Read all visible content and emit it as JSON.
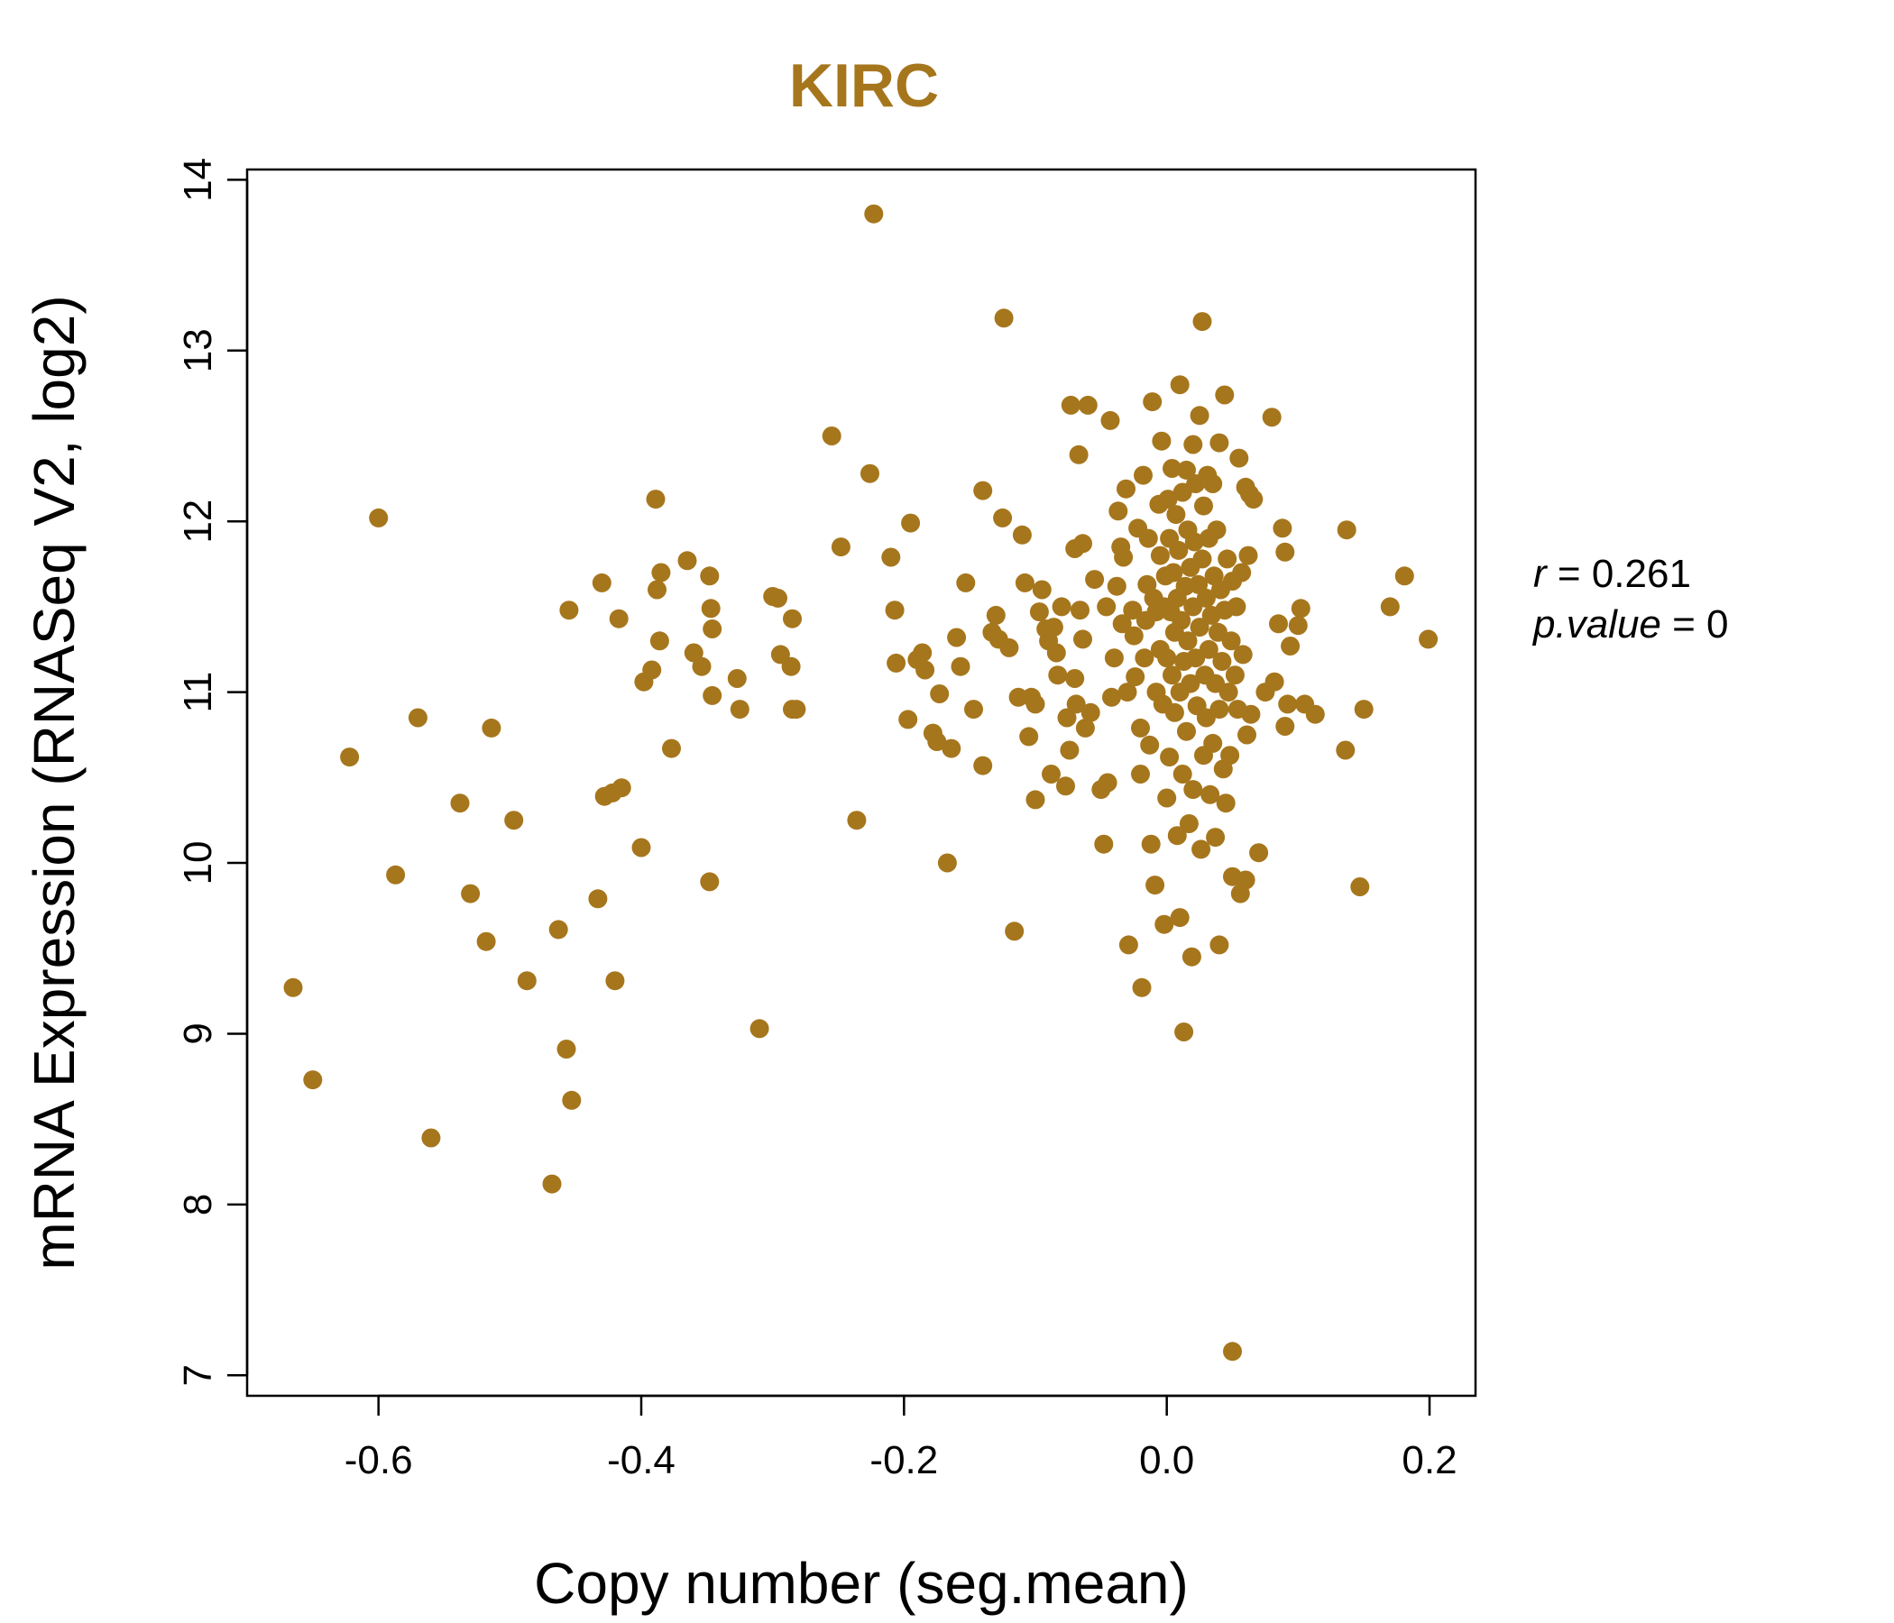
{
  "chart_data": {
    "type": "scatter",
    "title": "KIRC",
    "xlabel": "Copy number (seg.mean)",
    "ylabel": "mRNA Expression (RNASeq V2, log2)",
    "xlim": [
      -0.7,
      0.235
    ],
    "ylim": [
      6.88,
      14.06
    ],
    "x_ticks": [
      -0.6,
      -0.4,
      -0.2,
      0.0,
      0.2
    ],
    "x_tick_labels": [
      "-0.6",
      "-0.4",
      "-0.2",
      "0.0",
      "0.2"
    ],
    "y_ticks": [
      7,
      8,
      9,
      10,
      11,
      12,
      13,
      14
    ],
    "y_tick_labels": [
      "7",
      "8",
      "9",
      "10",
      "11",
      "12",
      "13",
      "14"
    ],
    "grid": false,
    "point_color": "#A6761D",
    "title_color": "#A6761D",
    "stats": {
      "r_label": "r",
      "r_value": "0.261",
      "p_label": "p.value",
      "p_value": "0"
    },
    "series": [
      {
        "points": [
          [
            -0.665,
            9.27
          ],
          [
            -0.65,
            8.73
          ],
          [
            -0.6,
            12.02
          ],
          [
            -0.622,
            10.62
          ],
          [
            -0.57,
            10.85
          ],
          [
            -0.56,
            8.39
          ],
          [
            -0.587,
            9.93
          ],
          [
            -0.538,
            10.35
          ],
          [
            -0.53,
            9.82
          ],
          [
            -0.518,
            9.54
          ],
          [
            -0.514,
            10.79
          ],
          [
            -0.497,
            10.25
          ],
          [
            -0.487,
            9.31
          ],
          [
            -0.468,
            8.12
          ],
          [
            -0.463,
            9.61
          ],
          [
            -0.457,
            8.91
          ],
          [
            -0.455,
            11.48
          ],
          [
            -0.453,
            8.61
          ],
          [
            -0.433,
            9.79
          ],
          [
            -0.43,
            11.64
          ],
          [
            -0.428,
            10.39
          ],
          [
            -0.422,
            10.41
          ],
          [
            -0.42,
            9.31
          ],
          [
            -0.417,
            11.43
          ],
          [
            -0.415,
            10.44
          ],
          [
            -0.4,
            10.09
          ],
          [
            -0.398,
            11.06
          ],
          [
            -0.392,
            11.13
          ],
          [
            -0.389,
            12.13
          ],
          [
            -0.388,
            11.6
          ],
          [
            -0.386,
            11.3
          ],
          [
            -0.385,
            11.7
          ],
          [
            -0.377,
            10.67
          ],
          [
            -0.365,
            11.77
          ],
          [
            -0.36,
            11.23
          ],
          [
            -0.354,
            11.15
          ],
          [
            -0.348,
            11.68
          ],
          [
            -0.347,
            11.49
          ],
          [
            -0.346,
            10.98
          ],
          [
            -0.346,
            11.37
          ],
          [
            -0.348,
            9.89
          ],
          [
            -0.327,
            11.08
          ],
          [
            -0.325,
            10.9
          ],
          [
            -0.31,
            9.03
          ],
          [
            -0.3,
            11.56
          ],
          [
            -0.296,
            11.55
          ],
          [
            -0.294,
            11.22
          ],
          [
            -0.286,
            11.15
          ],
          [
            -0.285,
            11.43
          ],
          [
            -0.285,
            10.9
          ],
          [
            -0.282,
            10.9
          ],
          [
            -0.255,
            12.5
          ],
          [
            -0.248,
            11.85
          ],
          [
            -0.236,
            10.25
          ],
          [
            -0.226,
            12.28
          ],
          [
            -0.223,
            13.8
          ],
          [
            -0.21,
            11.79
          ],
          [
            -0.207,
            11.48
          ],
          [
            -0.206,
            11.17
          ],
          [
            -0.197,
            10.84
          ],
          [
            -0.195,
            11.99
          ],
          [
            -0.19,
            11.19
          ],
          [
            -0.186,
            11.23
          ],
          [
            -0.184,
            11.13
          ],
          [
            -0.178,
            10.76
          ],
          [
            -0.175,
            10.71
          ],
          [
            -0.173,
            10.99
          ],
          [
            -0.167,
            10.0
          ],
          [
            -0.164,
            10.67
          ],
          [
            -0.16,
            11.32
          ],
          [
            -0.157,
            11.15
          ],
          [
            -0.153,
            11.64
          ],
          [
            -0.147,
            10.9
          ],
          [
            -0.14,
            12.18
          ],
          [
            -0.14,
            10.57
          ],
          [
            -0.133,
            11.35
          ],
          [
            -0.13,
            11.45
          ],
          [
            -0.128,
            11.31
          ],
          [
            -0.125,
            12.02
          ],
          [
            -0.124,
            13.19
          ],
          [
            -0.12,
            11.26
          ],
          [
            -0.116,
            9.6
          ],
          [
            -0.113,
            10.97
          ],
          [
            -0.11,
            11.92
          ],
          [
            -0.108,
            11.64
          ],
          [
            -0.105,
            10.74
          ],
          [
            -0.103,
            10.97
          ],
          [
            -0.1,
            10.37
          ],
          [
            -0.1,
            10.93
          ],
          [
            -0.097,
            11.47
          ],
          [
            -0.095,
            11.6
          ],
          [
            -0.092,
            11.37
          ],
          [
            -0.09,
            11.3
          ],
          [
            -0.088,
            10.52
          ],
          [
            -0.086,
            11.38
          ],
          [
            -0.084,
            11.23
          ],
          [
            -0.083,
            11.1
          ],
          [
            -0.08,
            11.5
          ],
          [
            -0.077,
            10.45
          ],
          [
            -0.076,
            10.85
          ],
          [
            -0.074,
            10.66
          ],
          [
            -0.073,
            12.68
          ],
          [
            -0.07,
            11.84
          ],
          [
            -0.07,
            11.08
          ],
          [
            -0.069,
            10.93
          ],
          [
            -0.067,
            12.39
          ],
          [
            -0.066,
            11.48
          ],
          [
            -0.064,
            11.87
          ],
          [
            -0.064,
            11.31
          ],
          [
            -0.062,
            10.79
          ],
          [
            -0.06,
            12.68
          ],
          [
            -0.058,
            10.88
          ],
          [
            -0.055,
            11.66
          ],
          [
            -0.05,
            10.43
          ],
          [
            -0.048,
            10.11
          ],
          [
            -0.046,
            11.5
          ],
          [
            -0.045,
            10.47
          ],
          [
            -0.043,
            12.59
          ],
          [
            -0.042,
            10.97
          ],
          [
            -0.04,
            11.2
          ],
          [
            -0.038,
            11.62
          ],
          [
            -0.037,
            12.06
          ],
          [
            -0.035,
            11.85
          ],
          [
            -0.034,
            11.4
          ],
          [
            -0.033,
            11.79
          ],
          [
            -0.031,
            12.19
          ],
          [
            -0.03,
            11.0
          ],
          [
            -0.029,
            9.52
          ],
          [
            -0.026,
            11.48
          ],
          [
            -0.025,
            11.33
          ],
          [
            -0.024,
            11.09
          ],
          [
            -0.022,
            11.96
          ],
          [
            -0.02,
            10.52
          ],
          [
            -0.02,
            10.79
          ],
          [
            -0.019,
            9.27
          ],
          [
            -0.018,
            12.27
          ],
          [
            -0.017,
            11.2
          ],
          [
            -0.016,
            11.42
          ],
          [
            -0.015,
            11.63
          ],
          [
            -0.014,
            11.9
          ],
          [
            -0.013,
            10.69
          ],
          [
            -0.012,
            10.11
          ],
          [
            -0.011,
            12.7
          ],
          [
            -0.01,
            11.55
          ],
          [
            -0.009,
            9.87
          ],
          [
            -0.008,
            11.47
          ],
          [
            -0.008,
            11.0
          ],
          [
            -0.006,
            12.1
          ],
          [
            -0.005,
            11.8
          ],
          [
            -0.005,
            11.25
          ],
          [
            -0.004,
            12.47
          ],
          [
            -0.003,
            10.93
          ],
          [
            -0.002,
            11.5
          ],
          [
            -0.002,
            9.64
          ],
          [
            -0.001,
            11.68
          ],
          [
            0.0,
            11.2
          ],
          [
            0.0,
            10.38
          ],
          [
            0.001,
            12.13
          ],
          [
            0.002,
            11.9
          ],
          [
            0.002,
            10.62
          ],
          [
            0.003,
            11.47
          ],
          [
            0.004,
            11.1
          ],
          [
            0.004,
            12.31
          ],
          [
            0.005,
            11.7
          ],
          [
            0.006,
            10.88
          ],
          [
            0.006,
            11.35
          ],
          [
            0.007,
            12.04
          ],
          [
            0.008,
            11.55
          ],
          [
            0.008,
            10.16
          ],
          [
            0.009,
            11.83
          ],
          [
            0.01,
            9.68
          ],
          [
            0.01,
            12.8
          ],
          [
            0.01,
            11.0
          ],
          [
            0.011,
            11.42
          ],
          [
            0.012,
            10.52
          ],
          [
            0.012,
            12.17
          ],
          [
            0.013,
            11.18
          ],
          [
            0.013,
            9.01
          ],
          [
            0.014,
            11.62
          ],
          [
            0.015,
            10.77
          ],
          [
            0.015,
            12.3
          ],
          [
            0.016,
            11.95
          ],
          [
            0.016,
            11.3
          ],
          [
            0.017,
            10.23
          ],
          [
            0.018,
            11.73
          ],
          [
            0.018,
            11.05
          ],
          [
            0.019,
            9.45
          ],
          [
            0.02,
            12.45
          ],
          [
            0.02,
            11.5
          ],
          [
            0.02,
            10.43
          ],
          [
            0.021,
            11.88
          ],
          [
            0.022,
            11.2
          ],
          [
            0.022,
            12.22
          ],
          [
            0.023,
            10.92
          ],
          [
            0.024,
            11.63
          ],
          [
            0.025,
            12.62
          ],
          [
            0.025,
            11.38
          ],
          [
            0.026,
            10.08
          ],
          [
            0.027,
            13.17
          ],
          [
            0.027,
            11.78
          ],
          [
            0.028,
            10.63
          ],
          [
            0.028,
            12.09
          ],
          [
            0.029,
            11.1
          ],
          [
            0.03,
            11.55
          ],
          [
            0.03,
            10.85
          ],
          [
            0.031,
            12.27
          ],
          [
            0.032,
            11.25
          ],
          [
            0.032,
            11.9
          ],
          [
            0.033,
            10.4
          ],
          [
            0.034,
            11.45
          ],
          [
            0.035,
            12.22
          ],
          [
            0.035,
            10.7
          ],
          [
            0.036,
            11.68
          ],
          [
            0.037,
            11.05
          ],
          [
            0.037,
            10.15
          ],
          [
            0.038,
            11.95
          ],
          [
            0.039,
            11.35
          ],
          [
            0.04,
            12.46
          ],
          [
            0.04,
            9.52
          ],
          [
            0.04,
            10.9
          ],
          [
            0.041,
            11.6
          ],
          [
            0.042,
            11.18
          ],
          [
            0.043,
            10.55
          ],
          [
            0.044,
            12.74
          ],
          [
            0.044,
            11.48
          ],
          [
            0.045,
            10.35
          ],
          [
            0.046,
            11.78
          ],
          [
            0.047,
            11.0
          ],
          [
            0.048,
            10.63
          ],
          [
            0.049,
            11.3
          ],
          [
            0.05,
            7.14
          ],
          [
            0.05,
            9.92
          ],
          [
            0.05,
            11.65
          ],
          [
            0.052,
            11.1
          ],
          [
            0.053,
            11.5
          ],
          [
            0.054,
            10.9
          ],
          [
            0.055,
            12.37
          ],
          [
            0.056,
            9.82
          ],
          [
            0.057,
            11.7
          ],
          [
            0.058,
            11.22
          ],
          [
            0.06,
            9.9
          ],
          [
            0.06,
            12.2
          ],
          [
            0.061,
            10.75
          ],
          [
            0.062,
            11.8
          ],
          [
            0.063,
            12.16
          ],
          [
            0.064,
            10.87
          ],
          [
            0.066,
            12.13
          ],
          [
            0.07,
            10.06
          ],
          [
            0.075,
            11.0
          ],
          [
            0.08,
            12.61
          ],
          [
            0.082,
            11.06
          ],
          [
            0.085,
            11.4
          ],
          [
            0.088,
            11.96
          ],
          [
            0.09,
            10.8
          ],
          [
            0.09,
            11.82
          ],
          [
            0.092,
            10.93
          ],
          [
            0.094,
            11.27
          ],
          [
            0.1,
            11.39
          ],
          [
            0.102,
            11.49
          ],
          [
            0.105,
            10.93
          ],
          [
            0.113,
            10.87
          ],
          [
            0.136,
            10.66
          ],
          [
            0.137,
            11.95
          ],
          [
            0.147,
            9.86
          ],
          [
            0.15,
            10.9
          ],
          [
            0.17,
            11.5
          ],
          [
            0.181,
            11.68
          ],
          [
            0.199,
            11.31
          ]
        ]
      }
    ]
  }
}
